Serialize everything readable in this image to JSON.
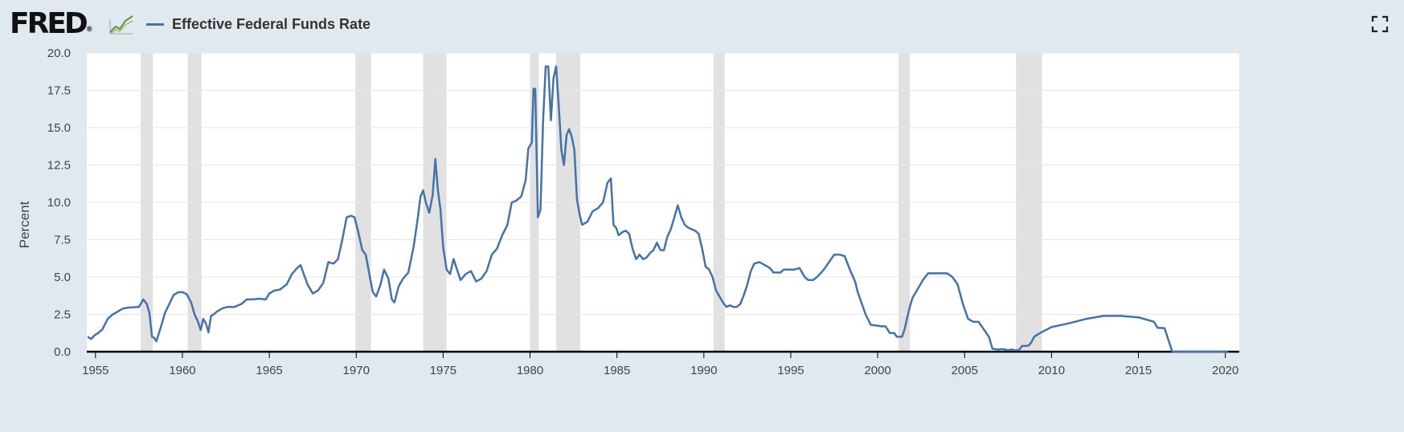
{
  "header": {
    "logo_text": "FRED",
    "logo_registered": "®",
    "legend_label": "Effective Federal Funds Rate",
    "legend_color": "#4572a7"
  },
  "icons": {
    "fullscreen": "fullscreen-icon",
    "logo_mark": "chart-trend-icon"
  },
  "chart_data": {
    "type": "line",
    "title": "",
    "xlabel": "",
    "ylabel": "Percent",
    "xlim": [
      1954.5,
      2020.8
    ],
    "ylim": [
      0,
      20
    ],
    "y_ticks": [
      "0.0",
      "2.5",
      "5.0",
      "7.5",
      "10.0",
      "12.5",
      "15.0",
      "17.5",
      "20.0"
    ],
    "x_ticks": [
      "1955",
      "1960",
      "1965",
      "1970",
      "1975",
      "1980",
      "1985",
      "1990",
      "1995",
      "2000",
      "2005",
      "2010",
      "2015",
      "2020"
    ],
    "grid": true,
    "recessions": [
      [
        1957.6,
        1958.3
      ],
      [
        1960.3,
        1961.1
      ],
      [
        1969.95,
        1970.85
      ],
      [
        1973.85,
        1975.2
      ],
      [
        1980.0,
        1980.5
      ],
      [
        1981.5,
        1982.9
      ],
      [
        1990.55,
        1991.2
      ],
      [
        2001.2,
        2001.85
      ],
      [
        2007.95,
        2009.45
      ]
    ],
    "series": [
      {
        "color": "#4572a7",
        "x": [
          1954.55,
          1954.75,
          1954.95,
          1955.15,
          1955.4,
          1955.7,
          1956.0,
          1956.3,
          1956.6,
          1956.9,
          1957.2,
          1957.5,
          1957.75,
          1957.95,
          1958.1,
          1958.25,
          1958.35,
          1958.5,
          1958.75,
          1959.0,
          1959.25,
          1959.5,
          1959.75,
          1960.0,
          1960.25,
          1960.5,
          1960.7,
          1960.9,
          1961.05,
          1961.2,
          1961.35,
          1961.5,
          1961.65,
          1961.8,
          1962.0,
          1962.3,
          1962.6,
          1963.0,
          1963.4,
          1963.7,
          1964.0,
          1964.4,
          1964.8,
          1965.0,
          1965.3,
          1965.6,
          1966.0,
          1966.3,
          1966.6,
          1966.8,
          1966.95,
          1967.2,
          1967.5,
          1967.8,
          1968.1,
          1968.4,
          1968.7,
          1968.95,
          1969.2,
          1969.45,
          1969.7,
          1969.9,
          1970.1,
          1970.35,
          1970.55,
          1970.8,
          1970.95,
          1971.15,
          1971.4,
          1971.6,
          1971.85,
          1972.05,
          1972.2,
          1972.45,
          1972.7,
          1973.0,
          1973.3,
          1973.55,
          1973.7,
          1973.85,
          1974.0,
          1974.2,
          1974.4,
          1974.55,
          1974.7,
          1974.85,
          1975.0,
          1975.2,
          1975.4,
          1975.6,
          1975.8,
          1976.0,
          1976.3,
          1976.6,
          1976.9,
          1977.2,
          1977.5,
          1977.8,
          1978.1,
          1978.4,
          1978.7,
          1978.95,
          1979.2,
          1979.5,
          1979.75,
          1979.9,
          1980.0,
          1980.1,
          1980.2,
          1980.3,
          1980.45,
          1980.6,
          1980.75,
          1980.9,
          1981.05,
          1981.2,
          1981.35,
          1981.5,
          1981.65,
          1981.8,
          1981.95,
          1982.1,
          1982.25,
          1982.4,
          1982.55,
          1982.7,
          1982.85,
          1983.0,
          1983.3,
          1983.6,
          1983.9,
          1984.2,
          1984.45,
          1984.65,
          1984.8,
          1984.95,
          1985.1,
          1985.3,
          1985.5,
          1985.7,
          1985.9,
          1986.1,
          1986.3,
          1986.5,
          1986.7,
          1986.9,
          1987.1,
          1987.3,
          1987.5,
          1987.7,
          1987.9,
          1988.1,
          1988.3,
          1988.5,
          1988.7,
          1988.9,
          1989.1,
          1989.3,
          1989.5,
          1989.7,
          1989.9,
          1990.1,
          1990.3,
          1990.5,
          1990.7,
          1990.9,
          1991.1,
          1991.3,
          1991.5,
          1991.7,
          1991.9,
          1992.1,
          1992.3,
          1992.5,
          1992.7,
          1992.9,
          1993.2,
          1993.5,
          1993.8,
          1994.0,
          1994.2,
          1994.4,
          1994.6,
          1994.8,
          1995.0,
          1995.2,
          1995.5,
          1995.8,
          1996.0,
          1996.3,
          1996.6,
          1996.9,
          1997.2,
          1997.5,
          1997.8,
          1998.1,
          1998.4,
          1998.7,
          1998.85,
          1999.0,
          1999.3,
          1999.6,
          1999.9,
          2000.2,
          2000.45,
          2000.7,
          2000.95,
          2001.1,
          2001.25,
          2001.4,
          2001.55,
          2001.7,
          2001.85,
          2002.0,
          2002.3,
          2002.6,
          2002.9,
          2003.0,
          2003.5,
          2004.0,
          2004.3,
          2004.6,
          2004.9,
          2005.2,
          2005.5,
          2005.8,
          2006.1,
          2006.4,
          2006.6,
          2006.9,
          2007.2,
          2007.5,
          2007.7,
          2007.85,
          2008.0,
          2008.15,
          2008.3,
          2008.5,
          2008.7,
          2008.85,
          2009.0,
          2009.2,
          2009.5,
          2010.0,
          2011.0,
          2012.0,
          2013.0,
          2014.0,
          2015.0,
          2015.9,
          2016.1,
          2016.5,
          2016.95,
          2017.3,
          2017.6,
          2017.9,
          2018.2,
          2018.5,
          2018.8,
          2019.0,
          2019.4,
          2019.6,
          2019.85,
          2020.0,
          2020.15
        ]
      }
    ]
  }
}
